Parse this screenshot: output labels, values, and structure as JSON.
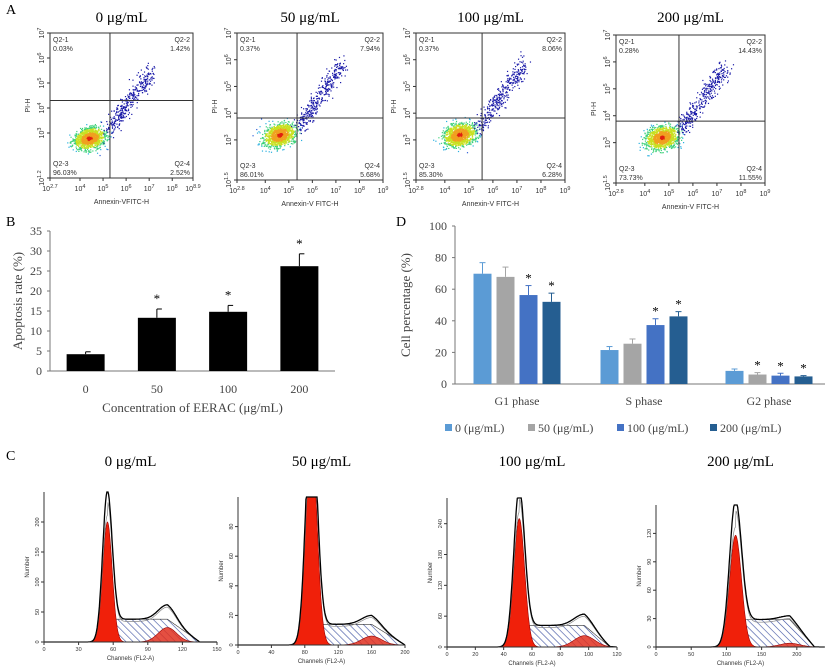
{
  "panel_labels": {
    "A": "A",
    "B": "B",
    "C": "C",
    "D": "D"
  },
  "chart_data": [
    {
      "type": "scatter",
      "panel": "A",
      "description_kind": "flow cytometry Annexin-V/PI dot plots",
      "plots": [
        {
          "title": "0 μg/mL",
          "xlabel": "Annexin-VFITC-H",
          "ylabel": "PI-H",
          "x_ticks": [
            "2.7",
            "4",
            "5",
            "6",
            "7",
            "8",
            "8.9"
          ],
          "y_ticks": [
            "1.2",
            "3",
            "4",
            "5",
            "6",
            "7"
          ],
          "xlim": [
            2.7,
            8.9
          ],
          "ylim": [
            1.2,
            7
          ],
          "gate_x": 5.3,
          "gate_y": 4.3,
          "cluster": [
            4.4,
            2.8
          ],
          "quadrants": {
            "Q2-1": "0.03%",
            "Q2-2": "1.42%",
            "Q2-3": "96.03%",
            "Q2-4": "2.52%"
          }
        },
        {
          "title": "50 μg/mL",
          "xlabel": "Annexin-V FITC-H",
          "ylabel": "PI-H",
          "x_ticks": [
            "2.8",
            "4",
            "5",
            "6",
            "7",
            "8",
            "9"
          ],
          "y_ticks": [
            "1.5",
            "3",
            "4",
            "5",
            "6",
            "7"
          ],
          "xlim": [
            2.8,
            9
          ],
          "ylim": [
            1.5,
            7
          ],
          "gate_x": 5.35,
          "gate_y": 3.82,
          "cluster": [
            4.6,
            3.2
          ],
          "quadrants": {
            "Q2-1": "0.37%",
            "Q2-2": "7.94%",
            "Q2-3": "86.01%",
            "Q2-4": "5.68%"
          }
        },
        {
          "title": "100 μg/mL",
          "xlabel": "Annexin-V FITC-H",
          "ylabel": "PI-H",
          "x_ticks": [
            "2.8",
            "4",
            "5",
            "6",
            "7",
            "8",
            "9"
          ],
          "y_ticks": [
            "1.5",
            "3",
            "4",
            "5",
            "6",
            "7"
          ],
          "xlim": [
            2.8,
            9
          ],
          "ylim": [
            1.5,
            7
          ],
          "gate_x": 5.55,
          "gate_y": 3.82,
          "cluster": [
            4.6,
            3.2
          ],
          "quadrants": {
            "Q2-1": "0.37%",
            "Q2-2": "8.06%",
            "Q2-3": "85.30%",
            "Q2-4": "6.28%"
          }
        },
        {
          "title": "200 μg/mL",
          "xlabel": "Annexin-V FITC-H",
          "ylabel": "PI-H",
          "x_ticks": [
            "2.8",
            "4",
            "5",
            "6",
            "7",
            "8",
            "9"
          ],
          "y_ticks": [
            "1.5",
            "3",
            "4",
            "5",
            "6",
            "7"
          ],
          "xlim": [
            2.8,
            9
          ],
          "ylim": [
            1.5,
            7
          ],
          "gate_x": 5.42,
          "gate_y": 3.8,
          "cluster": [
            4.7,
            3.2
          ],
          "quadrants": {
            "Q2-1": "0.28%",
            "Q2-2": "14.43%",
            "Q2-3": "73.73%",
            "Q2-4": "11.55%"
          }
        }
      ]
    },
    {
      "type": "bar",
      "panel": "B",
      "categories": [
        "0",
        "50",
        "100",
        "200"
      ],
      "values": [
        4.2,
        13.3,
        14.8,
        26.2
      ],
      "errors": [
        0.6,
        2.2,
        1.6,
        3.1
      ],
      "significant": [
        false,
        true,
        true,
        true
      ],
      "significance_mark": "*",
      "xlabel": "Concentration of EERAC (μg/mL)",
      "ylabel": "Apoptosis rate (%)",
      "ylim": [
        0,
        35
      ],
      "y_ticks": [
        "0",
        "5",
        "10",
        "15",
        "20",
        "25",
        "30",
        "35"
      ],
      "bar_color": "#000000"
    },
    {
      "type": "area",
      "panel": "C",
      "description_kind": "cell cycle DNA histograms",
      "plots": [
        {
          "title": "0 μg/mL",
          "xlabel": "Channels (FL2-A)",
          "ylabel": "Number",
          "xlim": [
            0,
            150
          ],
          "ylim": [
            0,
            250
          ],
          "x_ticks": [
            "0",
            "30",
            "60",
            "90",
            "120",
            "150"
          ],
          "y_ticks": [
            "0",
            "50",
            "100",
            "150",
            "200"
          ],
          "g1_peak": 55,
          "g1_height": 200,
          "s_level": 38,
          "g2_peak": 107,
          "g2_height": 24,
          "end": 135
        },
        {
          "title": "50 μg/mL",
          "xlabel": "Channels (FL2-A)",
          "ylabel": "Number",
          "xlim": [
            0,
            200
          ],
          "ylim": [
            0,
            100
          ],
          "x_ticks": [
            "0",
            "40",
            "80",
            "120",
            "160",
            "200"
          ],
          "y_ticks": [
            "0",
            "20",
            "40",
            "60",
            "80"
          ],
          "g1_peak": 88,
          "g1_height": 140,
          "s_level": 14,
          "g2_peak": 160,
          "g2_height": 6,
          "end": 200
        },
        {
          "title": "100 μg/mL",
          "xlabel": "Channels (FL2-A)",
          "ylabel": "Number",
          "xlim": [
            0,
            120
          ],
          "ylim": [
            0,
            290
          ],
          "x_ticks": [
            "0",
            "20",
            "40",
            "60",
            "80",
            "100",
            "120"
          ],
          "y_ticks": [
            "0",
            "60",
            "120",
            "180",
            "240"
          ],
          "g1_peak": 51,
          "g1_height": 250,
          "s_level": 42,
          "g2_peak": 97,
          "g2_height": 22,
          "end": 115
        },
        {
          "title": "200 μg/mL",
          "xlabel": "Channels (FL2-A)",
          "ylabel": "Number",
          "xlim": [
            0,
            240
          ],
          "ylim": [
            0,
            150
          ],
          "x_ticks": [
            "0",
            "50",
            "100",
            "150",
            "200"
          ],
          "y_ticks": [
            "0",
            "30",
            "60",
            "90",
            "120"
          ],
          "g1_peak": 113,
          "g1_height": 118,
          "s_level": 29,
          "g2_peak": 190,
          "g2_height": 4,
          "end": 225
        }
      ]
    },
    {
      "type": "bar",
      "panel": "D",
      "categories": [
        "G1 phase",
        "S phase",
        "G2 phase"
      ],
      "series": [
        {
          "name": "0 (μg/mL)",
          "color": "#5B9BD5",
          "values": [
            69.8,
            21.5,
            8.3
          ],
          "errors": [
            7.0,
            2.2,
            1.2
          ],
          "significant": [
            false,
            false,
            false
          ]
        },
        {
          "name": "50 (μg/mL)",
          "color": "#A5A5A5",
          "values": [
            67.8,
            25.5,
            6.0
          ],
          "errors": [
            6.2,
            3.0,
            1.2
          ],
          "significant": [
            false,
            false,
            true
          ]
        },
        {
          "name": "100 (μg/mL)",
          "color": "#4472C4",
          "values": [
            56.3,
            37.3,
            5.3
          ],
          "errors": [
            6.0,
            4.0,
            1.5
          ],
          "significant": [
            true,
            true,
            true
          ]
        },
        {
          "name": "200  (μg/mL)",
          "color": "#255E91",
          "values": [
            52.0,
            42.8,
            4.8
          ],
          "errors": [
            5.5,
            3.0,
            0.5
          ],
          "significant": [
            true,
            true,
            true
          ]
        }
      ],
      "significance_mark": "*",
      "xlabel": "",
      "ylabel": "Cell percentage (%)",
      "ylim": [
        0,
        100
      ],
      "y_ticks": [
        "0",
        "20",
        "40",
        "60",
        "80",
        "100"
      ],
      "legend": "bottom"
    }
  ]
}
